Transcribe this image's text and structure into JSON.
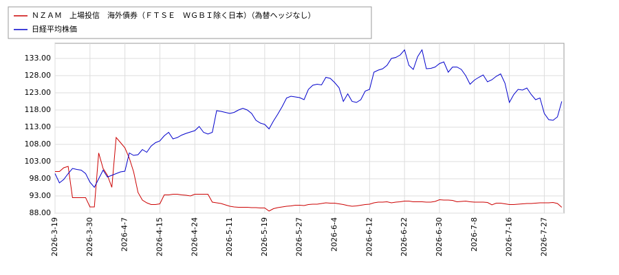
{
  "chart_data": {
    "type": "line",
    "categories": [
      "2026-3-19",
      null,
      null,
      null,
      null,
      null,
      null,
      null,
      "2026-3-30",
      null,
      null,
      null,
      null,
      null,
      null,
      null,
      "2026-4-7",
      null,
      null,
      null,
      null,
      null,
      null,
      null,
      "2026-4-15",
      null,
      null,
      null,
      null,
      null,
      null,
      null,
      "2026-4-24",
      null,
      null,
      null,
      null,
      null,
      null,
      null,
      "2026-5-11",
      null,
      null,
      null,
      null,
      null,
      null,
      null,
      "2026-5-19",
      null,
      null,
      null,
      null,
      null,
      null,
      null,
      "2026-5-27",
      null,
      null,
      null,
      null,
      null,
      null,
      null,
      "2026-6-4",
      null,
      null,
      null,
      null,
      null,
      null,
      null,
      "2026-6-12",
      null,
      null,
      null,
      null,
      null,
      null,
      null,
      "2026-6-22",
      null,
      null,
      null,
      null,
      null,
      null,
      null,
      "2026-6-30",
      null,
      null,
      null,
      null,
      null,
      null,
      null,
      "2026-7-8",
      null,
      null,
      null,
      null,
      null,
      null,
      null,
      "2026-7-16",
      null,
      null,
      null,
      null,
      null,
      null,
      null,
      "2026-7-27",
      null,
      null,
      null,
      null
    ],
    "series": [
      {
        "name": "ＮＺＡＭ　上場投信　海外債券（ＦＴＳＥ　ＷＧＢＩ除く日本）（為替ヘッジなし）",
        "color": "#cc0000",
        "values": [
          100.1,
          100.1,
          101.2,
          101.6,
          92.5,
          92.5,
          92.5,
          92.5,
          89.8,
          89.8,
          105.5,
          101,
          99,
          95.5,
          110,
          108.5,
          107,
          104,
          100,
          94,
          91.8,
          91,
          90.5,
          90.5,
          90.7,
          93.3,
          93.3,
          93.5,
          93.5,
          93.3,
          93.2,
          93,
          93.5,
          93.5,
          93.5,
          93.5,
          91.2,
          91,
          90.8,
          90.4,
          90,
          89.8,
          89.7,
          89.7,
          89.7,
          89.6,
          89.6,
          89.5,
          89.5,
          88.6,
          89.3,
          89.6,
          89.8,
          90,
          90.1,
          90.3,
          90.3,
          90.2,
          90.5,
          90.6,
          90.6,
          90.8,
          91,
          90.9,
          90.9,
          90.7,
          90.5,
          90.2,
          90,
          90.1,
          90.3,
          90.5,
          90.6,
          91,
          91.2,
          91.2,
          91.3,
          91,
          91.2,
          91.3,
          91.5,
          91.5,
          91.3,
          91.3,
          91.3,
          91.2,
          91.2,
          91.4,
          91.9,
          91.8,
          91.8,
          91.7,
          91.3,
          91.4,
          91.5,
          91.3,
          91.2,
          91.2,
          91.2,
          91.1,
          90.4,
          90.9,
          90.9,
          90.7,
          90.5,
          90.5,
          90.6,
          90.7,
          90.8,
          90.8,
          90.9,
          91,
          91,
          91,
          91.1,
          90.8,
          89.7
        ]
      },
      {
        "name": "日経平均株価",
        "color": "#0000cc",
        "values": [
          99.5,
          96.8,
          97.8,
          99.5,
          101,
          100.7,
          100.5,
          99.5,
          97,
          95.5,
          98,
          100.5,
          98.5,
          99,
          99.5,
          100,
          100.2,
          105.5,
          104.8,
          105,
          106.5,
          105.7,
          107.5,
          108.5,
          109,
          110.5,
          111.5,
          109.6,
          110,
          110.7,
          111.2,
          111.6,
          112,
          113.2,
          111.5,
          111,
          111.5,
          117.8,
          117.6,
          117.3,
          117,
          117.3,
          118,
          118.5,
          118,
          117,
          115,
          114.2,
          113.8,
          112.5,
          114.8,
          116.8,
          119,
          121.5,
          122,
          121.8,
          121.6,
          121,
          124,
          125.2,
          125.5,
          125.3,
          127.5,
          127.2,
          126,
          124.5,
          120.5,
          122.7,
          120.5,
          120.2,
          121,
          123.5,
          124,
          129,
          129.6,
          130,
          131,
          133,
          133.3,
          134,
          135.5,
          131,
          129.8,
          133.5,
          135.5,
          130,
          130.1,
          130.5,
          131.5,
          132,
          129,
          130.5,
          130.5,
          129.8,
          128,
          125.5,
          126.7,
          127.5,
          128.2,
          126.2,
          126.8,
          127.8,
          128.5,
          125.8,
          120.2,
          122.5,
          124,
          123.8,
          124.4,
          122.5,
          121,
          121.5,
          117,
          115.2,
          115,
          116,
          120.5
        ]
      }
    ],
    "ylim": [
      88,
      137.4
    ],
    "yticks": [
      {
        "value": 88,
        "label": "88.00"
      },
      {
        "value": 93,
        "label": "93.00"
      },
      {
        "value": 98,
        "label": "98.00"
      },
      {
        "value": 103,
        "label": "103.00"
      },
      {
        "value": 108,
        "label": "108.00"
      },
      {
        "value": 113,
        "label": "113.00"
      },
      {
        "value": 118,
        "label": "118.00"
      },
      {
        "value": 123,
        "label": "123.00"
      },
      {
        "value": 128,
        "label": "128.00"
      },
      {
        "value": 133,
        "label": "133.00"
      }
    ],
    "grid": true,
    "legend": "top-left"
  }
}
